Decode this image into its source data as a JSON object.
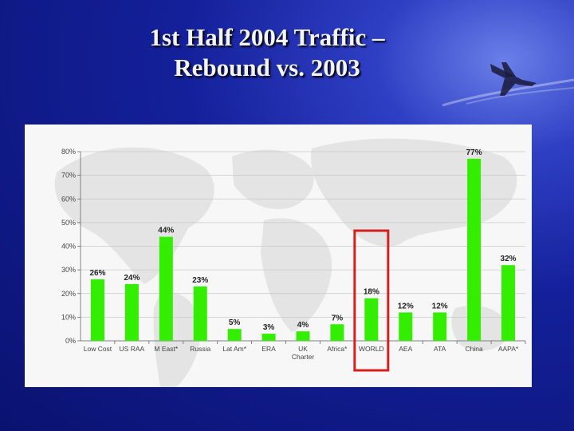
{
  "slide": {
    "title_line1": "1st Half 2004 Traffic –",
    "title_line2": "Rebound vs. 2003",
    "background_color": "#14209a"
  },
  "chart_data": {
    "type": "bar",
    "categories": [
      "Low Cost",
      "US RAA",
      "M East*",
      "Russia",
      "Lat Am*",
      "ERA",
      "UK Charter",
      "Africa*",
      "WORLD",
      "AEA",
      "ATA",
      "China",
      "AAPA*"
    ],
    "category_lines": [
      [
        "Low Cost"
      ],
      [
        "US RAA"
      ],
      [
        "M East*"
      ],
      [
        "Russia"
      ],
      [
        "Lat Am*"
      ],
      [
        "ERA"
      ],
      [
        "UK",
        "Charter"
      ],
      [
        "Africa*"
      ],
      [
        "WORLD"
      ],
      [
        "AEA"
      ],
      [
        "ATA"
      ],
      [
        "China"
      ],
      [
        "AAPA*"
      ]
    ],
    "values": [
      26,
      24,
      44,
      23,
      5,
      3,
      4,
      7,
      18,
      12,
      12,
      77,
      32
    ],
    "data_labels": [
      "26%",
      "24%",
      "44%",
      "23%",
      "5%",
      "3%",
      "4%",
      "7%",
      "18%",
      "12%",
      "12%",
      "77%",
      "32%"
    ],
    "y_ticks": [
      "0%",
      "10%",
      "20%",
      "30%",
      "40%",
      "50%",
      "60%",
      "70%",
      "80%"
    ],
    "ylim": [
      0,
      80
    ],
    "bar_color": "#33ee00",
    "highlight_category": "WORLD",
    "highlight_color": "#d42020",
    "grid": true,
    "legend": "none"
  }
}
